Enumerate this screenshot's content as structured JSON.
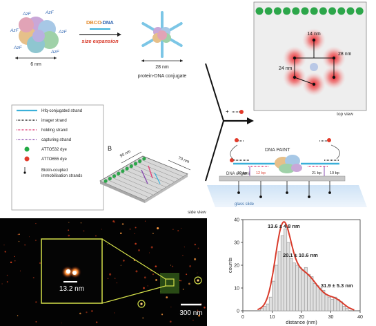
{
  "labels": {
    "azf": "AzF",
    "six_nm": "6 nm",
    "dbco": "DBCO",
    "dna": "-DNA",
    "size_expansion": "size expansion",
    "twentyeight_nm": "28 nm",
    "conjugate": "protein-DNA conjugate",
    "panel_b": "B",
    "ninety_nm": "90 nm",
    "seventy_nm": "70 nm",
    "side_view": "side view",
    "top_view": "top view",
    "dna_paint": "DNA PAINT",
    "dna_origami": "DNA origami",
    "glass_slide": "glass slide",
    "bp12": "12 bp",
    "bp10a": "10 bp",
    "bp21": "21 bp",
    "bp10b": "10 bp",
    "d14": "14 nm",
    "d28": "28 nm",
    "d24": "24 nm",
    "plus": "+",
    "zoom_scale": "13.2 nm",
    "scalebar": "300 nm"
  },
  "legend": [
    {
      "label": "Hfq-conjugated strand",
      "color": "#3ab0d9"
    },
    {
      "label": "imager strand",
      "color": "#222222"
    },
    {
      "label": "holding strand",
      "color": "#e0447a"
    },
    {
      "label": "capturing strand",
      "color": "#8a4fb0"
    },
    {
      "label": "ATTO532 dye",
      "color": "#22aa44"
    },
    {
      "label": "ATTO655 dye",
      "color": "#e23a2a"
    },
    {
      "label": "Biotin-coupled immobilisation strands",
      "color": "#111111"
    }
  ],
  "chart_data": {
    "type": "bar",
    "xlabel": "distance (nm)",
    "ylabel": "counts",
    "xlim": [
      0,
      40
    ],
    "ylim": [
      0,
      40
    ],
    "xticks": [
      0,
      10,
      20,
      30,
      40
    ],
    "yticks": [
      0,
      10,
      20,
      30,
      40
    ],
    "bin_width": 1,
    "bins_start": [
      6,
      7,
      8,
      9,
      10,
      11,
      12,
      13,
      14,
      15,
      16,
      17,
      18,
      19,
      20,
      21,
      22,
      23,
      24,
      25,
      26,
      27,
      28,
      29,
      30,
      31,
      32,
      33,
      34,
      35
    ],
    "values": [
      1,
      2,
      3,
      6,
      13,
      20,
      26,
      33,
      36,
      30,
      23,
      21,
      20,
      19,
      18,
      19,
      16,
      15,
      12,
      11,
      10,
      9,
      7,
      6,
      5,
      6,
      5,
      4,
      2,
      1
    ],
    "fit_peaks": [
      {
        "mean": 13.6,
        "sd": 4.8,
        "label": "13.6 ± 4.8 nm"
      },
      {
        "mean": 20.1,
        "sd": 10.6,
        "label": "20.1 ± 10.6 nm"
      },
      {
        "mean": 31.9,
        "sd": 5.3,
        "label": "31.9 ± 5.3 nm"
      }
    ],
    "colors": {
      "bars": "#9a9a9a",
      "fit": "#d83a2a"
    }
  }
}
